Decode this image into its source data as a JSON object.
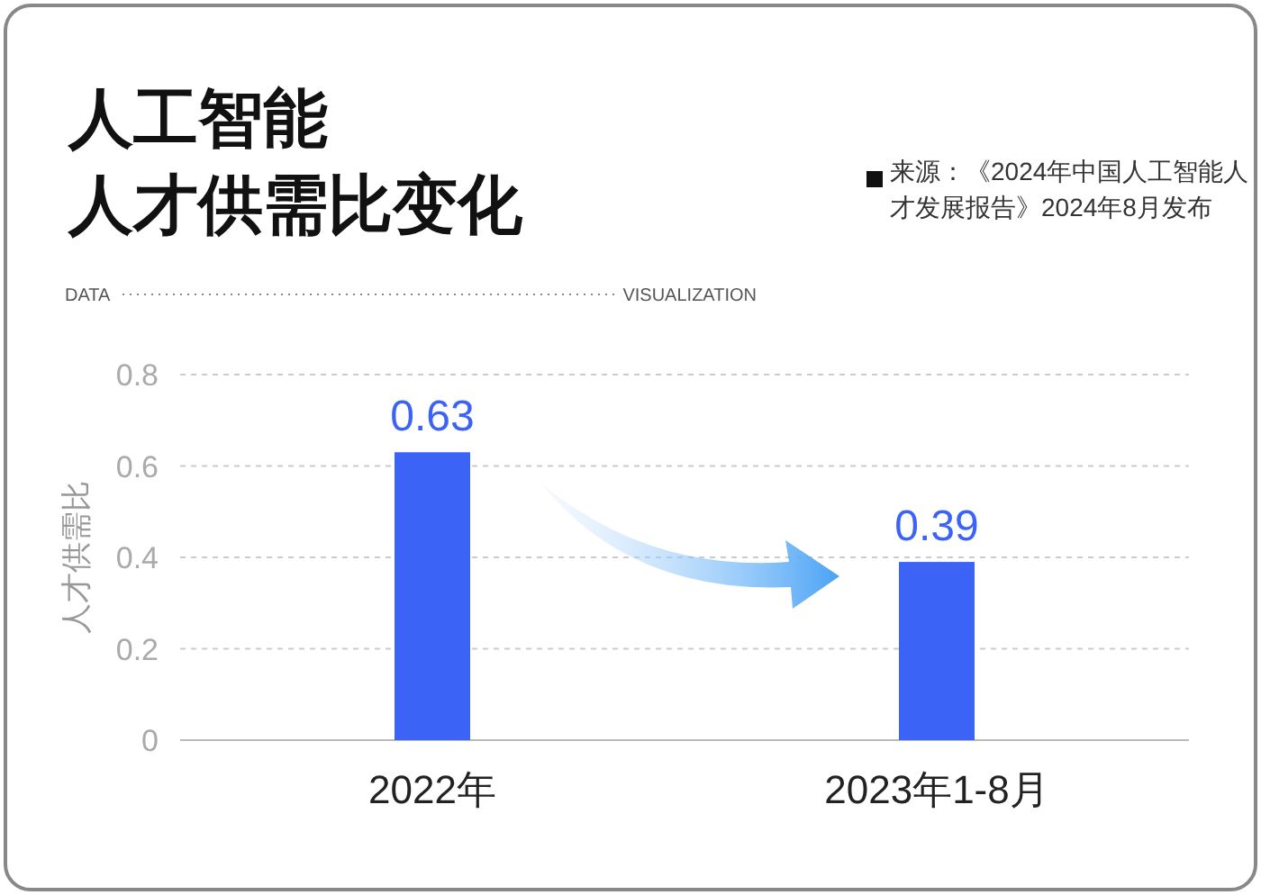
{
  "chart_data": {
    "type": "bar",
    "title": "人工智能人才供需比变化",
    "ylabel": "人才供需比",
    "categories": [
      "2022年",
      "2023年1-8月"
    ],
    "values": [
      0.63,
      0.39
    ],
    "color": "#3b63f6",
    "ylim": [
      0,
      0.8
    ],
    "yticks": [
      0,
      0.2,
      0.4,
      0.6,
      0.8
    ],
    "grid": "y",
    "data_labels": true,
    "annotations": [
      "来源：《2024年中国人工智能人才发展报告》2024年8月发布",
      "DATA",
      "VISUALIZATION"
    ]
  }
}
